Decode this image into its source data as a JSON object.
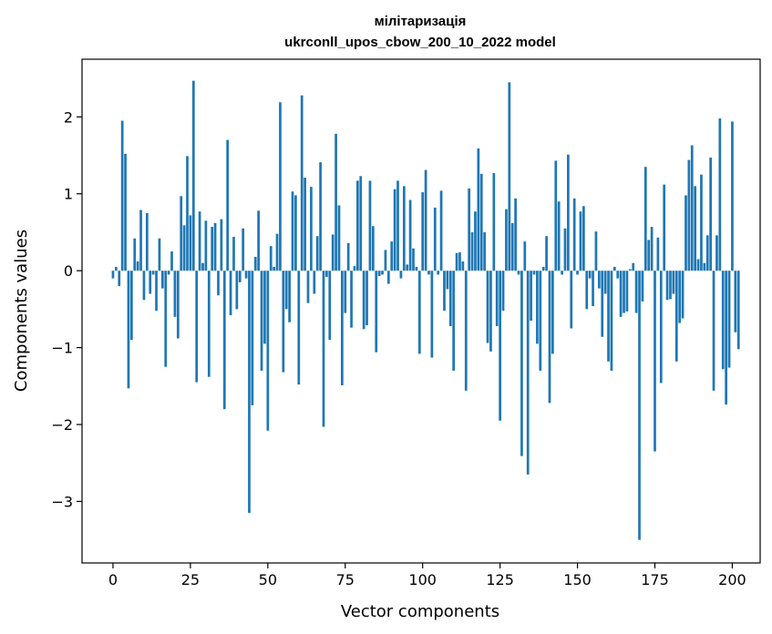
{
  "chart_data": {
    "type": "bar",
    "title": "мілітаризація",
    "subtitle": "ukrconll_upos_cbow_200_10_2022 model",
    "xlabel": "Vector components",
    "ylabel": "Components values",
    "xlim": [
      -10,
      209
    ],
    "ylim": [
      -3.8,
      2.75
    ],
    "xticks": [
      0,
      25,
      50,
      75,
      100,
      125,
      150,
      175,
      200
    ],
    "xtick_labels": [
      "0",
      "25",
      "50",
      "75",
      "100",
      "125",
      "150",
      "175",
      "200"
    ],
    "yticks": [
      -3,
      -2,
      -1,
      0,
      1,
      2
    ],
    "ytick_labels": [
      "−3",
      "−2",
      "−1",
      "0",
      "1",
      "2"
    ],
    "grid": false,
    "bar_color": "#1f77b4",
    "values": [
      -0.1,
      0.05,
      -0.2,
      1.95,
      1.52,
      -1.53,
      -0.9,
      0.42,
      0.12,
      0.79,
      -0.38,
      0.75,
      -0.3,
      -0.05,
      -0.52,
      0.42,
      -0.23,
      -1.25,
      -0.05,
      0.25,
      -0.6,
      -0.88,
      0.97,
      0.59,
      1.49,
      0.72,
      2.47,
      -1.45,
      0.77,
      0.1,
      0.65,
      -1.38,
      0.57,
      0.62,
      -0.32,
      0.67,
      -1.8,
      1.7,
      -0.58,
      0.44,
      -0.5,
      -0.15,
      0.55,
      -0.1,
      -3.15,
      -1.75,
      0.18,
      0.78,
      -1.3,
      -0.95,
      -2.08,
      0.32,
      0.05,
      0.48,
      2.19,
      -1.32,
      -0.5,
      -0.67,
      1.03,
      0.98,
      -1.48,
      2.28,
      1.21,
      -0.42,
      1.09,
      -0.3,
      0.45,
      1.41,
      -2.03,
      -0.08,
      -0.9,
      0.47,
      1.78,
      0.85,
      -1.49,
      -0.55,
      0.36,
      -0.74,
      0.06,
      1.17,
      1.23,
      -0.76,
      -0.71,
      1.17,
      0.58,
      -1.06,
      -0.07,
      -0.05,
      0.27,
      -0.17,
      0.38,
      1.06,
      1.17,
      -0.1,
      1.1,
      0.08,
      0.92,
      0.29,
      0.05,
      -1.08,
      1.02,
      1.31,
      -0.05,
      -1.13,
      0.82,
      -0.05,
      1.04,
      -0.52,
      -0.24,
      -0.72,
      -1.3,
      0.23,
      0.24,
      0.12,
      -1.56,
      1.07,
      0.5,
      0.77,
      1.59,
      1.26,
      0.5,
      -0.94,
      -1.05,
      1.27,
      -0.72,
      -1.95,
      -0.52,
      0.8,
      2.45,
      0.62,
      0.94,
      -0.05,
      -2.41,
      0.38,
      -2.65,
      -0.65,
      -0.05,
      -0.95,
      -1.3,
      0.05,
      0.45,
      -1.72,
      -1.08,
      1.43,
      0.9,
      -0.05,
      0.55,
      1.51,
      -0.75,
      0.94,
      -0.05,
      0.77,
      0.84,
      -0.5,
      -0.1,
      -0.46,
      0.51,
      -0.23,
      -0.86,
      -0.3,
      -1.18,
      -1.3,
      0.05,
      -0.1,
      -0.6,
      -0.55,
      -0.53,
      0.02,
      0.1,
      -0.55,
      -3.5,
      -0.4,
      1.35,
      0.4,
      0.57,
      -2.35,
      0.43,
      -1.46,
      1.12,
      -0.38,
      -0.37,
      -0.3,
      -1.18,
      -0.68,
      -0.62,
      0.98,
      1.44,
      1.63,
      1.1,
      0.15,
      1.25,
      0.1,
      0.46,
      1.47,
      -1.56,
      0.46,
      1.98,
      -1.28,
      -1.74,
      -1.26,
      1.94,
      -0.8,
      -1.02
    ]
  }
}
